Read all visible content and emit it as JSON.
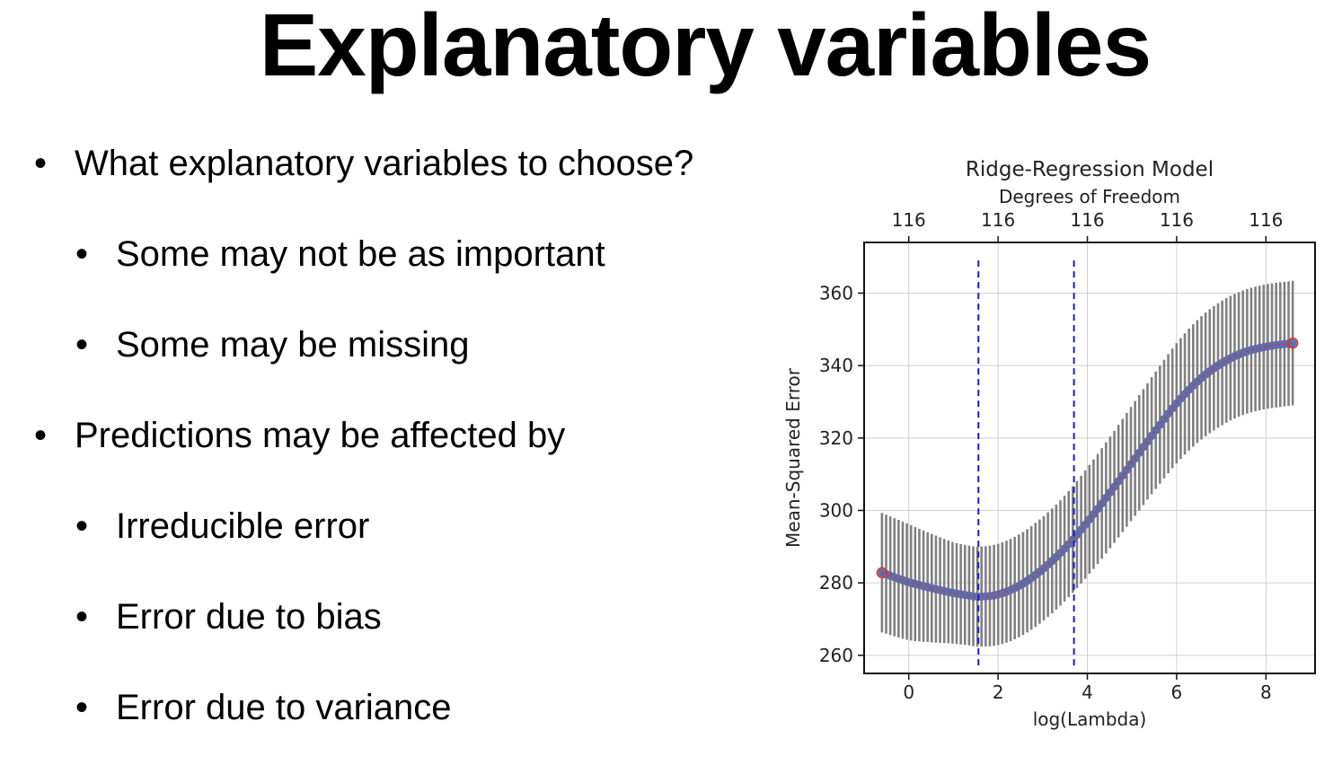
{
  "slide": {
    "title": "Explanatory variables",
    "bullets": [
      {
        "level": 1,
        "text": "What explanatory variables to choose?"
      },
      {
        "level": 2,
        "text": "Some may not be as important"
      },
      {
        "level": 2,
        "text": "Some may be missing"
      },
      {
        "level": 1,
        "text": "Predictions may be affected by"
      },
      {
        "level": 2,
        "text": "Irreducible error"
      },
      {
        "level": 2,
        "text": "Error due to bias"
      },
      {
        "level": 2,
        "text": "Error due to variance"
      }
    ],
    "bullet_glyph": "•"
  },
  "chart_data": {
    "type": "line",
    "title": "Ridge-Regression Model",
    "top_axis_label": "Degrees of Freedom",
    "top_ticks": [
      {
        "x": 0,
        "label": "116"
      },
      {
        "x": 2,
        "label": "116"
      },
      {
        "x": 4,
        "label": "116"
      },
      {
        "x": 6,
        "label": "116"
      },
      {
        "x": 8,
        "label": "116"
      }
    ],
    "xlabel": "log(Lambda)",
    "ylabel": "Mean-Squared Error",
    "xlim": [
      -1.0,
      9.1
    ],
    "ylim": [
      255,
      374
    ],
    "xticks": [
      0,
      2,
      4,
      6,
      8
    ],
    "yticks": [
      260,
      280,
      300,
      320,
      340,
      360
    ],
    "grid": true,
    "series": [
      {
        "x": [
          -0.6,
          0.0,
          0.5,
          1.0,
          1.3,
          1.56,
          2.0,
          2.5,
          3.0,
          3.5,
          4.0,
          4.5,
          5.0,
          5.5,
          6.0,
          6.5,
          7.0,
          7.5,
          8.0,
          8.6
        ],
        "y": [
          282.8,
          280.2,
          278.6,
          277.2,
          276.6,
          276.2,
          276.8,
          279.4,
          283.8,
          289.6,
          296.8,
          304.8,
          313.2,
          321.6,
          329.6,
          336.0,
          340.6,
          343.6,
          345.2,
          346.2
        ],
        "yerr": [
          16.5,
          16.0,
          15.0,
          14.0,
          13.8,
          13.8,
          14.0,
          14.2,
          14.4,
          14.6,
          15.0,
          15.4,
          15.8,
          16.2,
          16.6,
          17.0,
          17.2,
          17.2,
          17.2,
          17.2
        ],
        "line_color": "#e03030",
        "marker_color": "#4a78b8",
        "errorbar_color": "#808080"
      }
    ],
    "vlines": [
      {
        "x": 1.56,
        "color": "#1a1adb",
        "style": "dashed"
      },
      {
        "x": 3.7,
        "color": "#1a1adb",
        "style": "dashed"
      }
    ]
  }
}
